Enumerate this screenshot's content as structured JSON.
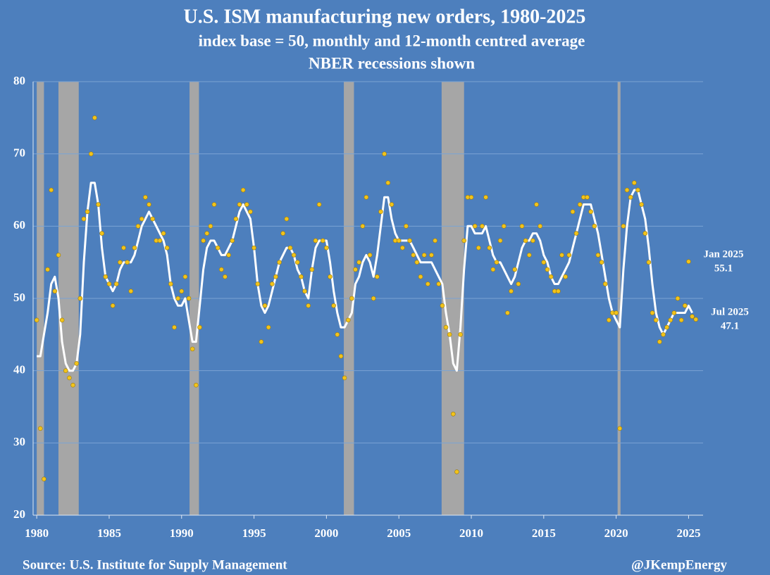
{
  "chart_data": {
    "type": "scatter_line",
    "title": "U.S. ISM manufacturing new orders, 1980-2025",
    "subtitle": [
      "index base = 50, monthly and 12-month centred average",
      "NBER recessions shown"
    ],
    "source": "Source: U.S. Institute for Supply Management",
    "credit": "@JKempEnergy",
    "annotations": [
      {
        "text": [
          "Jan 2025",
          "55.1"
        ]
      },
      {
        "text": [
          "Jul 2025",
          "47.1"
        ]
      }
    ],
    "xlim": [
      1979.75,
      2026.0
    ],
    "xticks": [
      1980,
      1985,
      1990,
      1995,
      2000,
      2005,
      2010,
      2015,
      2020,
      2025
    ],
    "ylim": [
      20,
      80
    ],
    "yticks": [
      20,
      30,
      40,
      50,
      60,
      70,
      80
    ],
    "grid": true,
    "recessions": [
      [
        1980.0,
        1980.5
      ],
      [
        1981.5,
        1982.9
      ],
      [
        1990.55,
        1991.2
      ],
      [
        2001.2,
        2001.9
      ],
      [
        2007.95,
        2009.5
      ],
      [
        2020.1,
        2020.3
      ]
    ],
    "recession_color": "#a6a6a6",
    "x": [
      1980,
      1980.25,
      1980.5,
      1980.75,
      1981,
      1981.25,
      1981.5,
      1981.75,
      1982,
      1982.25,
      1982.5,
      1982.75,
      1983,
      1983.25,
      1983.5,
      1983.75,
      1984,
      1984.25,
      1984.5,
      1984.75,
      1985,
      1985.25,
      1985.5,
      1985.75,
      1986,
      1986.25,
      1986.5,
      1986.75,
      1987,
      1987.25,
      1987.5,
      1987.75,
      1988,
      1988.25,
      1988.5,
      1988.75,
      1989,
      1989.25,
      1989.5,
      1989.75,
      1990,
      1990.25,
      1990.5,
      1990.75,
      1991,
      1991.25,
      1991.5,
      1991.75,
      1992,
      1992.25,
      1992.5,
      1992.75,
      1993,
      1993.25,
      1993.5,
      1993.75,
      1994,
      1994.25,
      1994.5,
      1994.75,
      1995,
      1995.25,
      1995.5,
      1995.75,
      1996,
      1996.25,
      1996.5,
      1996.75,
      1997,
      1997.25,
      1997.5,
      1997.75,
      1998,
      1998.25,
      1998.5,
      1998.75,
      1999,
      1999.25,
      1999.5,
      1999.75,
      2000,
      2000.25,
      2000.5,
      2000.75,
      2001,
      2001.25,
      2001.5,
      2001.75,
      2002,
      2002.25,
      2002.5,
      2002.75,
      2003,
      2003.25,
      2003.5,
      2003.75,
      2004,
      2004.25,
      2004.5,
      2004.75,
      2005,
      2005.25,
      2005.5,
      2005.75,
      2006,
      2006.25,
      2006.5,
      2006.75,
      2007,
      2007.25,
      2007.5,
      2007.75,
      2008,
      2008.25,
      2008.5,
      2008.75,
      2009,
      2009.25,
      2009.5,
      2009.75,
      2010,
      2010.25,
      2010.5,
      2010.75,
      2011,
      2011.25,
      2011.5,
      2011.75,
      2012,
      2012.25,
      2012.5,
      2012.75,
      2013,
      2013.25,
      2013.5,
      2013.75,
      2014,
      2014.25,
      2014.5,
      2014.75,
      2015,
      2015.25,
      2015.5,
      2015.75,
      2016,
      2016.25,
      2016.5,
      2016.75,
      2017,
      2017.25,
      2017.5,
      2017.75,
      2018,
      2018.25,
      2018.5,
      2018.75,
      2019,
      2019.25,
      2019.5,
      2019.75,
      2020,
      2020.25,
      2020.5,
      2020.75,
      2021,
      2021.25,
      2021.5,
      2021.75,
      2022,
      2022.25,
      2022.5,
      2022.75,
      2023,
      2023.25,
      2023.5,
      2023.75,
      2024,
      2024.25,
      2024.5,
      2024.75,
      2025,
      2025.25,
      2025.5
    ],
    "series": [
      {
        "kind": "dots",
        "color": "#f2c31a",
        "values": [
          47,
          32,
          25,
          54,
          65,
          51,
          56,
          47,
          40,
          39,
          38,
          41,
          50,
          61,
          62,
          70,
          75,
          63,
          59,
          53,
          52,
          49,
          52,
          55,
          57,
          55,
          51,
          57,
          60,
          61,
          64,
          63,
          61,
          58,
          58,
          59,
          57,
          52,
          46,
          50,
          51,
          53,
          50,
          43,
          38,
          46,
          58,
          59,
          60,
          63,
          57,
          54,
          53,
          56,
          58,
          61,
          63,
          65,
          63,
          62,
          57,
          52,
          44,
          49,
          46,
          52,
          53,
          55,
          59,
          61,
          57,
          56,
          55,
          53,
          51,
          49,
          54,
          58,
          63,
          58,
          57,
          53,
          49,
          45,
          42,
          39,
          47,
          50,
          54,
          55,
          60,
          64,
          56,
          50,
          53,
          62,
          70,
          66,
          63,
          58,
          58,
          57,
          60,
          58,
          56,
          55,
          53,
          56,
          52,
          56,
          58,
          52,
          49,
          46,
          45,
          34,
          26,
          45,
          58,
          64,
          64,
          60,
          57,
          60,
          64,
          57,
          54,
          55,
          58,
          60,
          48,
          51,
          54,
          52,
          60,
          58,
          56,
          58,
          63,
          60,
          55,
          54,
          53,
          51,
          51,
          56,
          53,
          56,
          62,
          59,
          63,
          64,
          64,
          62,
          60,
          56,
          55,
          52,
          47,
          48,
          48,
          32,
          60,
          65,
          64,
          66,
          65,
          63,
          59,
          55,
          48,
          47,
          44,
          45,
          46,
          47,
          48,
          50,
          47,
          49,
          55.1,
          47.5,
          47.1
        ]
      },
      {
        "kind": "line",
        "color": "#ffffff",
        "values": [
          42,
          42,
          45,
          48,
          52,
          53,
          50,
          44,
          41,
          40,
          40,
          41,
          45,
          55,
          62,
          66,
          66,
          63,
          57,
          53,
          52,
          51,
          52,
          54,
          55,
          55,
          55,
          56,
          58,
          60,
          61,
          62,
          61,
          60,
          59,
          58,
          56,
          52,
          50,
          49,
          49,
          50,
          47,
          44,
          44,
          49,
          54,
          57,
          58,
          58,
          57,
          56,
          56,
          57,
          58,
          60,
          62,
          63,
          62,
          61,
          57,
          52,
          49,
          48,
          49,
          51,
          53,
          55,
          56,
          57,
          57,
          56,
          54,
          53,
          51,
          50,
          54,
          57,
          58,
          58,
          58,
          55,
          51,
          48,
          46,
          46,
          47,
          48,
          52,
          53,
          55,
          56,
          55,
          53,
          56,
          60,
          64,
          64,
          61,
          59,
          58,
          58,
          58,
          58,
          57,
          56,
          55,
          55,
          55,
          55,
          54,
          53,
          52,
          48,
          45,
          41,
          40,
          46,
          54,
          60,
          60,
          59,
          59,
          59,
          60,
          58,
          56,
          55,
          55,
          54,
          53,
          52,
          53,
          55,
          57,
          58,
          58,
          59,
          59,
          58,
          56,
          55,
          53,
          52,
          52,
          53,
          54,
          55,
          57,
          59,
          61,
          63,
          63,
          63,
          61,
          59,
          56,
          53,
          50,
          48,
          47,
          46,
          54,
          60,
          64,
          65,
          65,
          63,
          61,
          57,
          52,
          48,
          46,
          45,
          46,
          47,
          48,
          48,
          48,
          48,
          49,
          48,
          null
        ]
      }
    ]
  }
}
